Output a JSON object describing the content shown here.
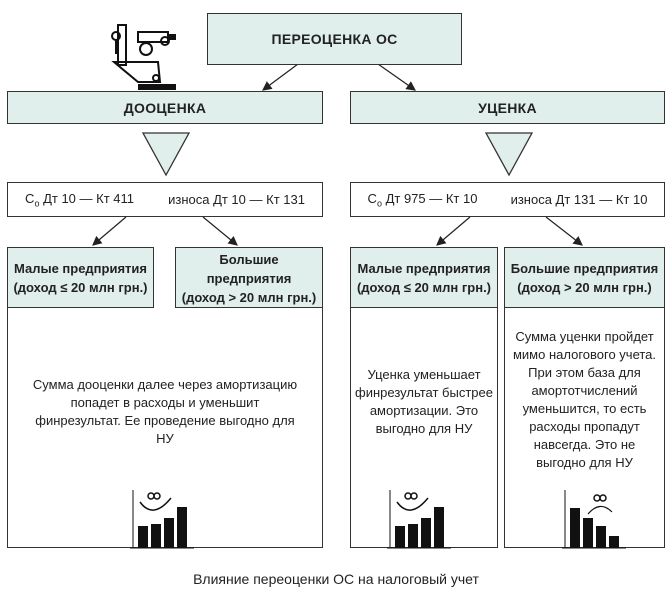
{
  "root": {
    "label": "ПЕРЕОЦЕНКА ОС"
  },
  "branches": [
    {
      "label": "ДООЦЕНКА",
      "formula": {
        "left_prefix": "С",
        "left_sub": "о",
        "left": "Дт 10 — Кт 411",
        "right": "износа Дт 10 — Кт 131"
      },
      "small": {
        "title": "Малые предприятия",
        "condition": "(доход ≤ 20 млн грн.)"
      },
      "large": {
        "title": "Большие предприятия",
        "condition": "(доход > 20 млн грн.)"
      },
      "shared_text": "Сумма дооценки далее через амортизацию попадет в расходы и уменьшит финрезультат. Ее проведение выгодно для НУ"
    },
    {
      "label": "УЦЕНКА",
      "formula": {
        "left_prefix": "С",
        "left_sub": "о",
        "left": "Дт 975 — Кт 10",
        "right": "износа Дт 131 — Кт 10"
      },
      "small": {
        "title": "Малые предприятия",
        "condition": "(доход ≤ 20 млн грн.)",
        "text": "Уценка уменьшает финрезультат быстрее амортизации. Это выгодно для НУ"
      },
      "large": {
        "title": "Большие предприятия",
        "condition": "(доход > 20 млн грн.)",
        "text": "Сумма уценки пройдет мимо налогового учета. При этом база для амортотчислений уменьшится, то есть расходы пропадут навсегда. Это не выгодно для НУ"
      }
    }
  ],
  "caption": "Влияние переоценки ОС на налоговый учет",
  "icons": [
    "machine-tool-icon",
    "happy-growth-chart-icon",
    "sad-decline-chart-icon"
  ],
  "colors": {
    "box_fill": "#e1efec",
    "border": "#333333"
  }
}
